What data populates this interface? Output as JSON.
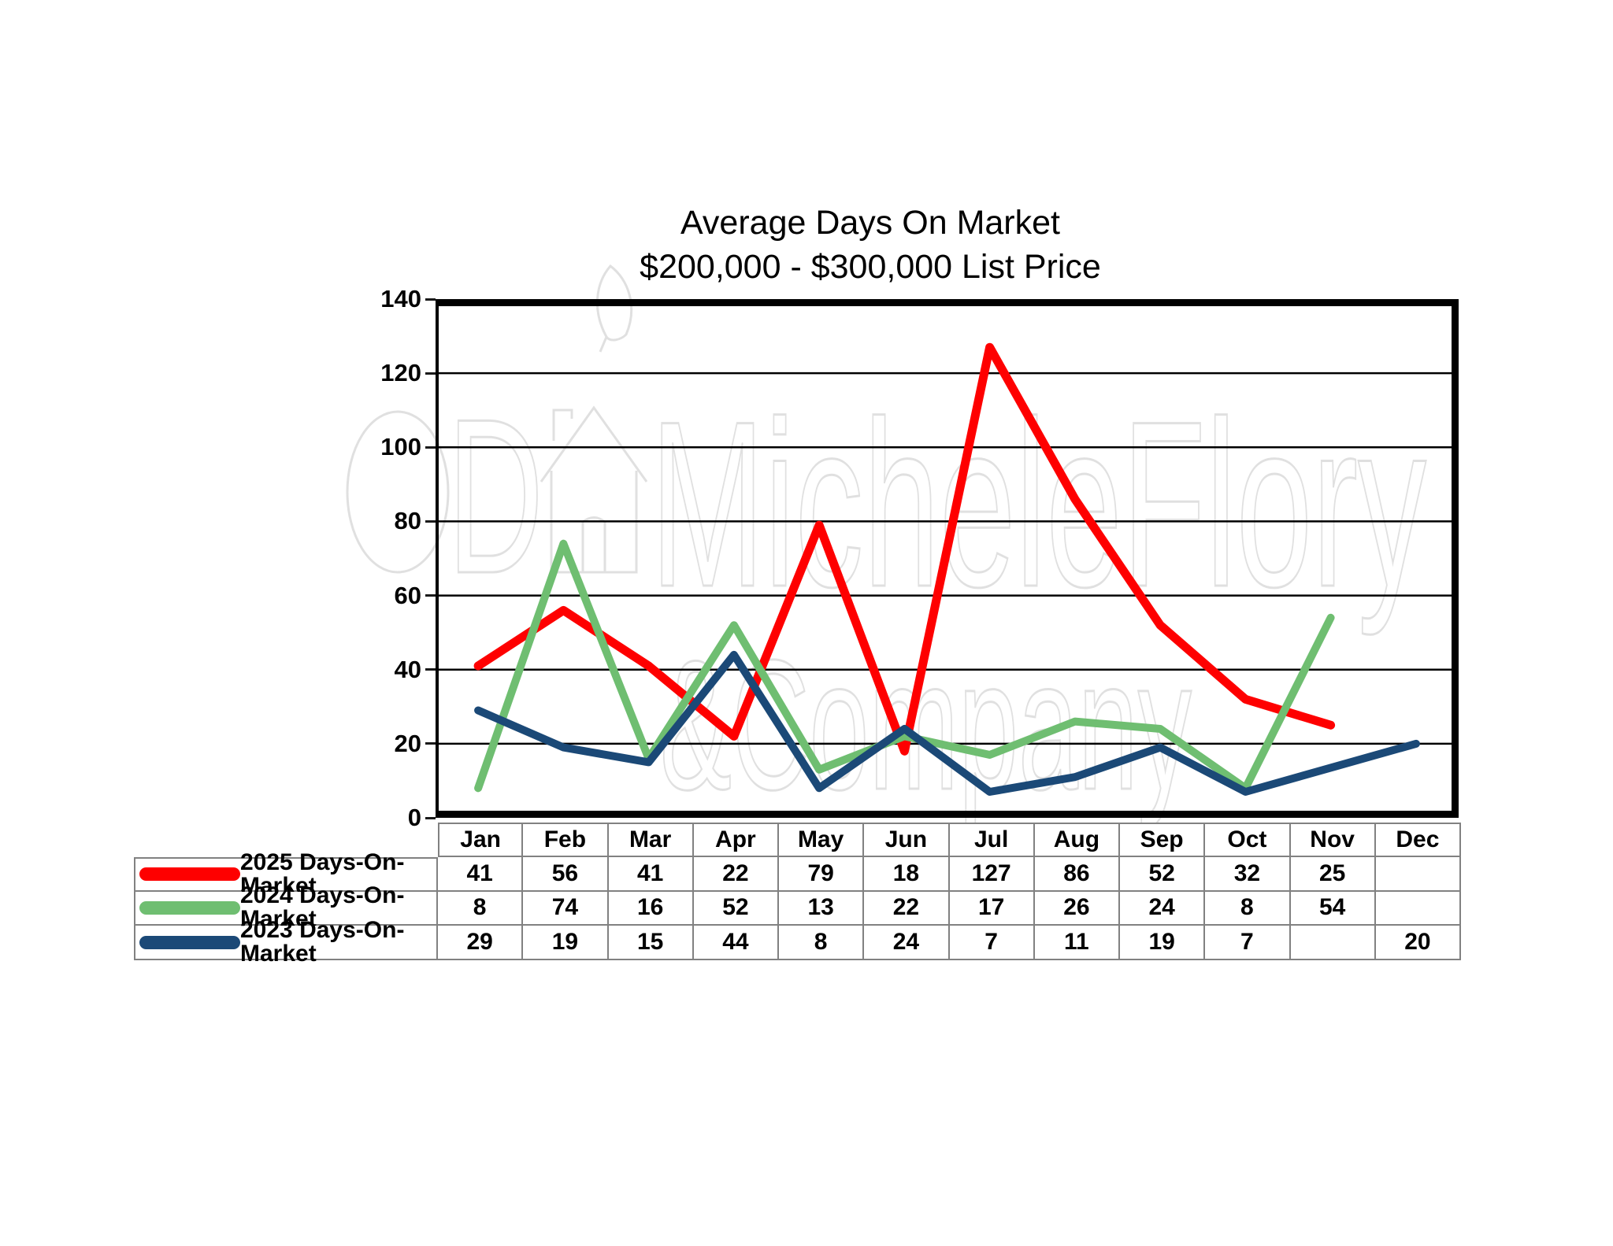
{
  "title": {
    "line1": "Average Days On Market",
    "line2": "$200,000 - $300,000 List Price"
  },
  "watermark": {
    "monogram": "D",
    "line1": "MicheleFlory",
    "line2": "&Company"
  },
  "chart_data": {
    "type": "line",
    "title": "Average Days On Market",
    "subtitle": "$200,000 - $300,000 List Price",
    "categories": [
      "Jan",
      "Feb",
      "Mar",
      "Apr",
      "May",
      "Jun",
      "Jul",
      "Aug",
      "Sep",
      "Oct",
      "Nov",
      "Dec"
    ],
    "series": [
      {
        "name": "2025 Days-On-Market",
        "color": "#fe0000",
        "values": [
          41,
          56,
          41,
          22,
          79,
          18,
          127,
          86,
          52,
          32,
          25,
          null
        ]
      },
      {
        "name": "2024 Days-On-Market",
        "color": "#6fbe71",
        "values": [
          8,
          74,
          16,
          52,
          13,
          22,
          17,
          26,
          24,
          8,
          54,
          null
        ]
      },
      {
        "name": "2023 Days-On-Market",
        "color": "#1b4977",
        "values": [
          29,
          19,
          15,
          44,
          8,
          24,
          7,
          11,
          19,
          7,
          null,
          20
        ]
      }
    ],
    "ylim": [
      0,
      140
    ],
    "yticks": [
      0,
      20,
      40,
      60,
      80,
      100,
      120,
      140
    ],
    "grid": true,
    "gridline_color": "#000000",
    "legend_position": "table-left",
    "gap_handling": "interpolate"
  }
}
